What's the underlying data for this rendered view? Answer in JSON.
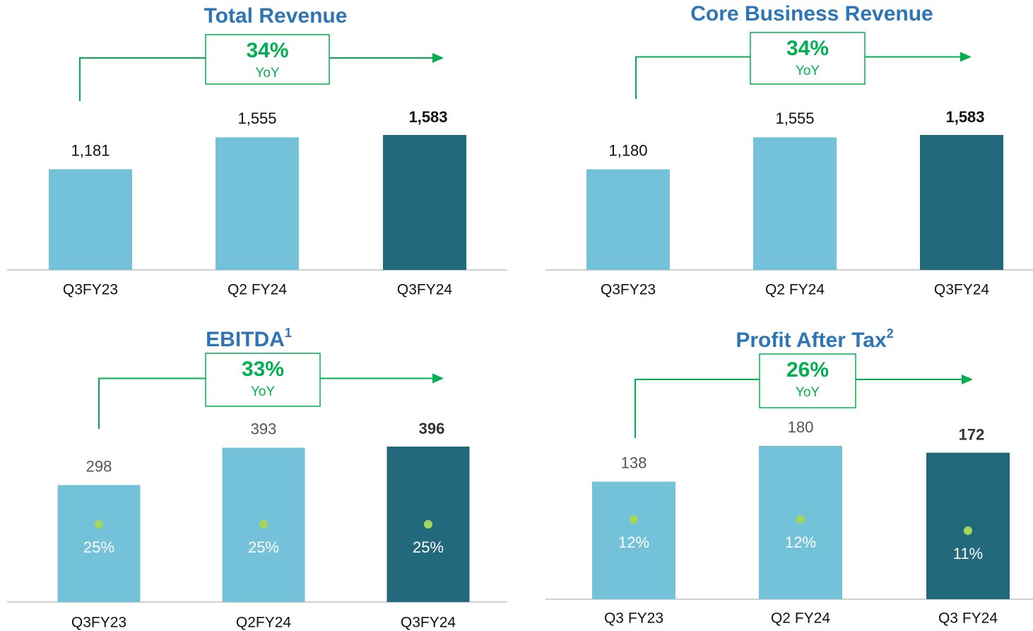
{
  "chart_data": [
    {
      "type": "bar",
      "title": "Total Revenue",
      "categories": [
        "Q3FY23",
        "Q2 FY24",
        "Q3FY24"
      ],
      "values": [
        1181,
        1555,
        1583
      ],
      "value_labels": [
        "1,181",
        "1,555",
        "1,583"
      ],
      "colors": [
        "#74c2d9",
        "#74c2d9",
        "#22697c"
      ],
      "annotation": {
        "value": 34,
        "value_label": "34%",
        "text": "YoY"
      }
    },
    {
      "type": "bar",
      "title": "Core Business Revenue",
      "categories": [
        "Q3FY23",
        "Q2 FY24",
        "Q3FY24"
      ],
      "values": [
        1180,
        1555,
        1583
      ],
      "value_labels": [
        "1,180",
        "1,555",
        "1,583"
      ],
      "colors": [
        "#74c2d9",
        "#74c2d9",
        "#22697c"
      ],
      "annotation": {
        "value": 34,
        "value_label": "34%",
        "text": "YoY"
      }
    },
    {
      "type": "bar",
      "title": "EBITDA",
      "title_note": "1",
      "categories": [
        "Q3FY23",
        "Q2FY24",
        "Q3FY24"
      ],
      "values": [
        298,
        393,
        396
      ],
      "colors": [
        "#74c2d9",
        "#74c2d9",
        "#22697c"
      ],
      "margins": [
        25,
        25,
        25
      ],
      "margin_labels": [
        "25%",
        "25%",
        "25%"
      ],
      "annotation": {
        "value": 33,
        "value_label": "33%",
        "text": "YoY"
      }
    },
    {
      "type": "bar",
      "title": "Profit After Tax",
      "title_note": "2",
      "categories": [
        "Q3 FY23",
        "Q2 FY24",
        "Q3 FY24"
      ],
      "values": [
        138,
        180,
        172
      ],
      "colors": [
        "#74c2d9",
        "#74c2d9",
        "#22697c"
      ],
      "margins": [
        12,
        12,
        11
      ],
      "margin_labels": [
        "12%",
        "12%",
        "11%"
      ],
      "annotation": {
        "value": 26,
        "value_label": "26%",
        "text": "YoY"
      }
    }
  ]
}
